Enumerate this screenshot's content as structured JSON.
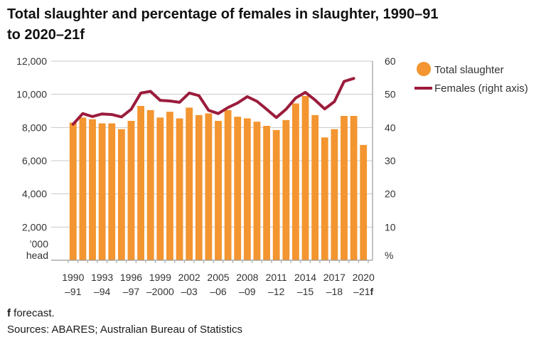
{
  "chart_data": {
    "type": "bar",
    "title_line1": "Total slaughter and percentage of females in slaughter, 1990–91",
    "title_line2": "to 2020–21f",
    "y_left_unit_line1": "’000",
    "y_left_unit_line2": "head",
    "y_right_unit": "%",
    "ylim_left": [
      0,
      12000
    ],
    "ylim_right": [
      0,
      60
    ],
    "yticks_left": [
      "12,000",
      "10,000",
      "8,000",
      "6,000",
      "4,000",
      "2,000"
    ],
    "yticks_right": [
      "60",
      "50",
      "40",
      "30",
      "20",
      "10"
    ],
    "x_tick_labels": [
      {
        "index": 0,
        "top": "1990",
        "bottom": "–91",
        "f": ""
      },
      {
        "index": 3,
        "top": "1993",
        "bottom": "–94",
        "f": ""
      },
      {
        "index": 6,
        "top": "1996",
        "bottom": "–97",
        "f": ""
      },
      {
        "index": 9,
        "top": "1999",
        "bottom": "–2000",
        "f": ""
      },
      {
        "index": 12,
        "top": "2002",
        "bottom": "–03",
        "f": ""
      },
      {
        "index": 15,
        "top": "2005",
        "bottom": "–06",
        "f": ""
      },
      {
        "index": 18,
        "top": "2008",
        "bottom": "–09",
        "f": ""
      },
      {
        "index": 21,
        "top": "2011",
        "bottom": "–12",
        "f": ""
      },
      {
        "index": 24,
        "top": "2014",
        "bottom": "–15",
        "f": ""
      },
      {
        "index": 27,
        "top": "2017",
        "bottom": "–18",
        "f": ""
      },
      {
        "index": 30,
        "top": "2020",
        "bottom": "–21",
        "f": "f"
      }
    ],
    "series": [
      {
        "name": "Total slaughter",
        "type": "bar",
        "axis": "left",
        "color": "#f39530",
        "values": [
          8300,
          8600,
          8500,
          8250,
          8250,
          7900,
          8400,
          9300,
          9050,
          8600,
          8950,
          8550,
          9200,
          8750,
          8850,
          8400,
          9050,
          8650,
          8550,
          8350,
          8100,
          7850,
          8450,
          9450,
          9900,
          8750,
          7400,
          7900,
          8700,
          8700,
          6950
        ]
      },
      {
        "name": "Females (right axis)",
        "type": "line",
        "axis": "right",
        "color": "#9b1c3c",
        "values": [
          41,
          44.2,
          43.3,
          44.1,
          43.9,
          43.2,
          45.5,
          50.4,
          50.9,
          48.2,
          48,
          47.6,
          50.4,
          49.6,
          45.2,
          44.2,
          46,
          47.4,
          49.3,
          47.9,
          45.5,
          43,
          45.5,
          48.9,
          50.6,
          48.3,
          45.6,
          47.8,
          53.9,
          54.8,
          null
        ]
      }
    ]
  },
  "footnotes": {
    "forecast_mark": "f",
    "forecast_text": " forecast.",
    "sources": "Sources: ABARES; Australian Bureau of Statistics"
  }
}
